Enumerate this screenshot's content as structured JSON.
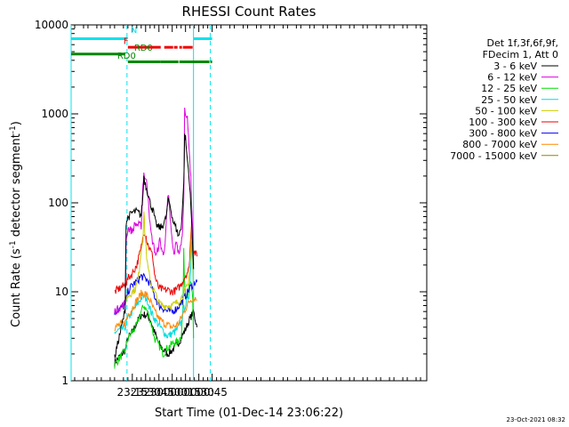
{
  "chart_data": {
    "type": "line",
    "title": "RHESSI Count Rates",
    "xlabel": "Start Time (01-Dec-14 23:06:22)",
    "ylabel_main": "Count Rate (s",
    "ylabel_sup1": "-1",
    "ylabel_mid": " detector segment",
    "ylabel_sup2": "-1",
    "ylabel_end": ")",
    "yscale": "log",
    "ylim": [
      1,
      10000
    ],
    "y_ticks": [
      {
        "value": 1,
        "label": "1"
      },
      {
        "value": 10,
        "label": "10"
      },
      {
        "value": 100,
        "label": "100"
      },
      {
        "value": 1000,
        "label": "1000"
      },
      {
        "value": 10000,
        "label": "10000"
      }
    ],
    "xlim_min": [
      1086,
      1487
    ],
    "x_ticks": [
      {
        "t": 1155,
        "label": "23:15"
      },
      {
        "t": 1170,
        "label": "23:30"
      },
      {
        "t": 1185,
        "label": "23:45"
      },
      {
        "t": 1200,
        "label": "00:00"
      },
      {
        "t": 1215,
        "label": "00:15"
      },
      {
        "t": 1230,
        "label": "00:30"
      },
      {
        "t": 1245,
        "label": "00:45"
      }
    ],
    "legend_header": [
      "Det 1f,3f,6f,9f,",
      "FDecim 1, Att 0"
    ],
    "series": [
      {
        "name": "3 - 6 keV",
        "color": "#000000",
        "points": [
          [
            1135,
            1.8
          ],
          [
            1147,
            6.3
          ],
          [
            1148,
            60
          ],
          [
            1150,
            68
          ],
          [
            1155,
            78
          ],
          [
            1160,
            80
          ],
          [
            1165,
            72
          ],
          [
            1167,
            120
          ],
          [
            1168,
            200
          ],
          [
            1169,
            175
          ],
          [
            1171,
            145
          ],
          [
            1173,
            125
          ],
          [
            1175,
            100
          ],
          [
            1179,
            78
          ],
          [
            1181,
            60
          ],
          [
            1184,
            53
          ],
          [
            1188,
            53
          ],
          [
            1193,
            67
          ],
          [
            1195,
            97
          ],
          [
            1196,
            108
          ],
          [
            1198,
            90
          ],
          [
            1201,
            62
          ],
          [
            1204,
            53
          ],
          [
            1205,
            50
          ],
          [
            1207,
            42
          ],
          [
            1210,
            52
          ],
          [
            1213,
            160
          ],
          [
            1214,
            560
          ],
          [
            1215,
            530
          ],
          [
            1216,
            390
          ],
          [
            1219,
            200
          ],
          [
            1221,
            90
          ],
          [
            1223,
            35
          ],
          [
            1224,
            18
          ]
        ]
      },
      {
        "name": "6 - 12 keV",
        "color": "#dd00dd",
        "points": [
          [
            1135,
            6
          ],
          [
            1147,
            7.5
          ],
          [
            1148,
            38
          ],
          [
            1150,
            52
          ],
          [
            1155,
            48
          ],
          [
            1158,
            58
          ],
          [
            1165,
            55
          ],
          [
            1167,
            160
          ],
          [
            1168,
            215
          ],
          [
            1171,
            170
          ],
          [
            1173,
            120
          ],
          [
            1175,
            55
          ],
          [
            1177,
            40
          ],
          [
            1180,
            30
          ],
          [
            1182,
            25
          ],
          [
            1186,
            38
          ],
          [
            1190,
            25
          ],
          [
            1192,
            38
          ],
          [
            1195,
            110
          ],
          [
            1196,
            112
          ],
          [
            1199,
            45
          ],
          [
            1201,
            30
          ],
          [
            1202,
            26
          ],
          [
            1205,
            38
          ],
          [
            1207,
            27
          ],
          [
            1210,
            32
          ],
          [
            1212,
            55
          ],
          [
            1213,
            120
          ],
          [
            1214,
            1200
          ],
          [
            1215,
            1050
          ],
          [
            1217,
            860
          ],
          [
            1219,
            450
          ],
          [
            1221,
            180
          ],
          [
            1223,
            50
          ],
          [
            1224,
            20
          ]
        ]
      },
      {
        "name": "12 - 25 keV",
        "color": "#00dd00",
        "points": [
          [
            1135,
            1.5
          ],
          [
            1147,
            2.2
          ],
          [
            1150,
            3
          ],
          [
            1155,
            3.5
          ],
          [
            1160,
            4.2
          ],
          [
            1165,
            6
          ],
          [
            1168,
            7
          ],
          [
            1172,
            6
          ],
          [
            1176,
            4.5
          ],
          [
            1180,
            3
          ],
          [
            1185,
            2.5
          ],
          [
            1190,
            2
          ],
          [
            1194,
            2.3
          ],
          [
            1198,
            2.5
          ],
          [
            1202,
            2.7
          ],
          [
            1206,
            2.7
          ],
          [
            1210,
            3.2
          ],
          [
            1212,
            6
          ],
          [
            1213,
            28
          ],
          [
            1214,
            12
          ],
          [
            1216,
            9
          ],
          [
            1219,
            11
          ],
          [
            1221,
            13
          ],
          [
            1223,
            8
          ],
          [
            1224,
            3
          ]
        ]
      },
      {
        "name": "25 - 50 keV",
        "color": "#00dddd",
        "points": [
          [
            1135,
            3.5
          ],
          [
            1147,
            4
          ],
          [
            1150,
            5
          ],
          [
            1155,
            6
          ],
          [
            1160,
            7
          ],
          [
            1165,
            8.5
          ],
          [
            1168,
            9
          ],
          [
            1172,
            8
          ],
          [
            1176,
            6
          ],
          [
            1180,
            5
          ],
          [
            1185,
            4.2
          ],
          [
            1190,
            3.6
          ],
          [
            1194,
            3.2
          ],
          [
            1198,
            3.3
          ],
          [
            1202,
            3.5
          ],
          [
            1206,
            3.8
          ],
          [
            1210,
            4.5
          ],
          [
            1213,
            6.5
          ],
          [
            1216,
            7.5
          ],
          [
            1219,
            9
          ],
          [
            1221,
            20
          ],
          [
            1222,
            38
          ],
          [
            1223,
            25
          ],
          [
            1224,
            8
          ]
        ]
      },
      {
        "name": "50 - 100 keV",
        "color": "#cccc00",
        "points": [
          [
            1147,
            8
          ],
          [
            1150,
            9
          ],
          [
            1155,
            10
          ],
          [
            1159,
            11
          ],
          [
            1162,
            15
          ],
          [
            1165,
            30
          ],
          [
            1167,
            40
          ],
          [
            1168,
            80
          ],
          [
            1169,
            50
          ],
          [
            1172,
            20
          ],
          [
            1176,
            12
          ],
          [
            1180,
            10
          ],
          [
            1185,
            7.5
          ],
          [
            1190,
            7
          ],
          [
            1195,
            7
          ],
          [
            1200,
            7
          ],
          [
            1205,
            7.5
          ],
          [
            1210,
            8.5
          ],
          [
            1214,
            10
          ],
          [
            1218,
            12
          ],
          [
            1221,
            30
          ],
          [
            1222,
            80
          ],
          [
            1223,
            30
          ],
          [
            1224,
            10
          ]
        ]
      },
      {
        "name": "100 - 300 keV",
        "color": "#ee0000",
        "points": [
          [
            1135,
            10
          ],
          [
            1147,
            12
          ],
          [
            1150,
            14
          ],
          [
            1155,
            16
          ],
          [
            1160,
            20
          ],
          [
            1164,
            28
          ],
          [
            1166,
            35
          ],
          [
            1168,
            48
          ],
          [
            1170,
            45
          ],
          [
            1171,
            40
          ],
          [
            1172,
            35
          ],
          [
            1175,
            30
          ],
          [
            1178,
            25
          ],
          [
            1180,
            16
          ],
          [
            1182,
            13
          ],
          [
            1185,
            11
          ],
          [
            1190,
            10.5
          ],
          [
            1195,
            10.5
          ],
          [
            1200,
            10
          ],
          [
            1205,
            10.5
          ],
          [
            1210,
            12
          ],
          [
            1213,
            14
          ],
          [
            1216,
            16
          ],
          [
            1219,
            18
          ],
          [
            1221,
            45
          ],
          [
            1222,
            60
          ],
          [
            1223,
            30
          ],
          [
            1225,
            28
          ],
          [
            1228,
            25
          ]
        ]
      },
      {
        "name": "300 - 800 keV",
        "color": "#0000ee",
        "points": [
          [
            1135,
            6
          ],
          [
            1147,
            7
          ],
          [
            1150,
            10
          ],
          [
            1155,
            12
          ],
          [
            1160,
            13
          ],
          [
            1165,
            15
          ],
          [
            1170,
            14
          ],
          [
            1175,
            12.5
          ],
          [
            1180,
            9
          ],
          [
            1185,
            7
          ],
          [
            1190,
            6.5
          ],
          [
            1195,
            6
          ],
          [
            1200,
            6
          ],
          [
            1205,
            6.5
          ],
          [
            1210,
            7.5
          ],
          [
            1215,
            9
          ],
          [
            1220,
            11
          ],
          [
            1223,
            12
          ],
          [
            1226,
            13
          ],
          [
            1228,
            13
          ]
        ]
      },
      {
        "name": "800 - 7000 keV",
        "color": "#ff8800",
        "points": [
          [
            1135,
            4
          ],
          [
            1147,
            4.5
          ],
          [
            1150,
            5.5
          ],
          [
            1155,
            6.5
          ],
          [
            1160,
            8
          ],
          [
            1165,
            9.5
          ],
          [
            1170,
            9.5
          ],
          [
            1175,
            8
          ],
          [
            1180,
            6
          ],
          [
            1185,
            5
          ],
          [
            1190,
            4.5
          ],
          [
            1195,
            4.2
          ],
          [
            1200,
            4
          ],
          [
            1205,
            4.2
          ],
          [
            1210,
            5
          ],
          [
            1215,
            6.5
          ],
          [
            1220,
            8
          ],
          [
            1223,
            8.5
          ],
          [
            1226,
            8.5
          ],
          [
            1228,
            8
          ]
        ]
      },
      {
        "name": "7000 - 15000 keV",
        "color": "#888800",
        "points": []
      }
    ],
    "bottom_traces": [
      {
        "color": "#000000",
        "points": [
          [
            1135,
            1.6
          ],
          [
            1147,
            2.2
          ],
          [
            1150,
            3
          ],
          [
            1155,
            3.5
          ],
          [
            1160,
            4.5
          ],
          [
            1165,
            5.5
          ],
          [
            1170,
            5.5
          ],
          [
            1175,
            5
          ],
          [
            1180,
            3.5
          ],
          [
            1185,
            2.6
          ],
          [
            1190,
            2.2
          ],
          [
            1195,
            2
          ],
          [
            1200,
            2.2
          ],
          [
            1205,
            2.5
          ],
          [
            1210,
            3
          ],
          [
            1215,
            3.8
          ],
          [
            1220,
            5
          ],
          [
            1224,
            6
          ],
          [
            1228,
            4
          ]
        ]
      }
    ],
    "attenuator_segments": [
      {
        "label": "N",
        "color": "#00e5ee",
        "y": 7000,
        "segments": [
          [
            1086,
            1149
          ],
          [
            1224,
            1245
          ]
        ]
      },
      {
        "label": "F",
        "color": "#ee0000",
        "y": 5600,
        "segments": [
          [
            1150,
            1187
          ],
          [
            1191,
            1201
          ],
          [
            1202,
            1206
          ],
          [
            1208,
            1211
          ],
          [
            1212,
            1223
          ]
        ]
      },
      {
        "label": "RD0",
        "color": "#008800",
        "y": 4700,
        "segments": [
          [
            1086,
            1147
          ]
        ]
      },
      {
        "label": "RD0",
        "color": "#008800",
        "y": 3850,
        "segments": [
          [
            1150,
            1187
          ],
          [
            1187,
            1207
          ],
          [
            1208,
            1242
          ],
          [
            1243,
            1245
          ]
        ]
      }
    ],
    "vlines": [
      {
        "t": 1086,
        "color": "#00e5ee",
        "style": "solid"
      },
      {
        "t": 1149,
        "color": "#00e5ee",
        "style": "dashed"
      },
      {
        "t": 1224,
        "color": "#00e5ee",
        "style": "solid"
      },
      {
        "t": 1243,
        "color": "#00e5ee",
        "style": "dashed"
      }
    ],
    "footer_date": "23-Oct-2021 08:32"
  }
}
